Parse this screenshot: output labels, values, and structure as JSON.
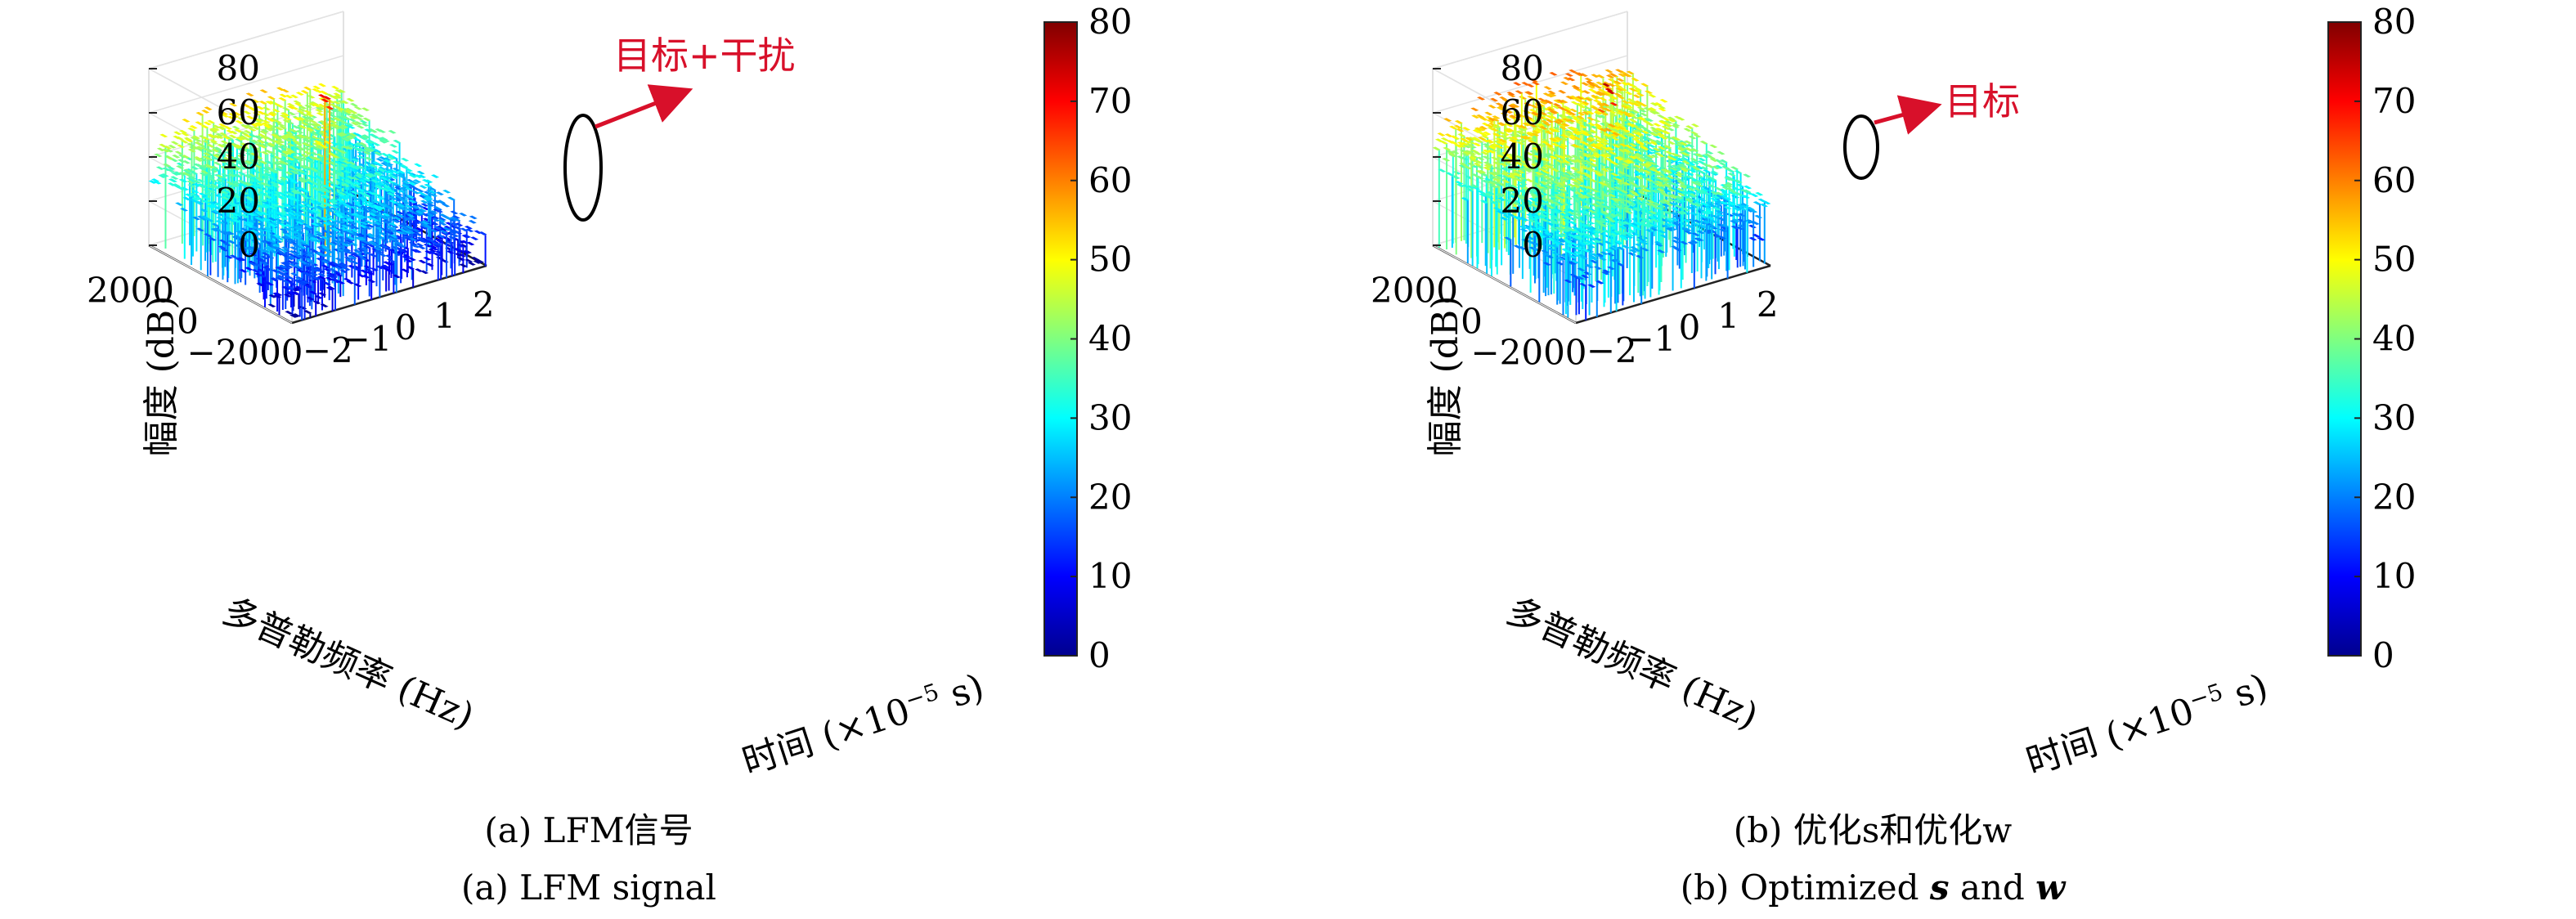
{
  "chart_data": [
    {
      "type": "surface3d",
      "panel": "a",
      "caption_cn": "(a) LFM信号",
      "caption_en": "(a) LFM signal",
      "zlabel": "幅度 (dB)",
      "ylabel": "多普勒频率 (Hz)",
      "xlabel_prefix": "时间 (×10",
      "xlabel_exp": "−5",
      "xlabel_suffix": " s)",
      "z_ticks": [
        "0",
        "20",
        "40",
        "60",
        "80"
      ],
      "y_ticks": [
        "2000",
        "0",
        "−2000"
      ],
      "x_ticks": [
        "−2",
        "−1",
        "0",
        "1",
        "2"
      ],
      "zlim": [
        0,
        80
      ],
      "ylim": [
        -2500,
        2500
      ],
      "xlim": [
        -2.5,
        2.5
      ],
      "colorbar_ticks": [
        "0",
        "10",
        "20",
        "30",
        "40",
        "50",
        "60",
        "70",
        "80"
      ],
      "colorbar_range": [
        0,
        80
      ],
      "surface_profile": {
        "front_level_db": 15,
        "back_level_db": 47,
        "noise_db": 10,
        "peak_db": 78,
        "peak_time": 0.2,
        "peak_doppler": 0
      },
      "annotation": {
        "text": "目标+干扰",
        "color": "#d8102a"
      }
    },
    {
      "type": "surface3d",
      "panel": "b",
      "caption_cn": "(b) 优化s和优化w",
      "caption_en_1": "(b) Optimized ",
      "caption_en_s": "s",
      "caption_en_2": " and ",
      "caption_en_w": "w",
      "zlabel": "幅度 (dB)",
      "ylabel": "多普勒频率 (Hz)",
      "xlabel_prefix": "时间 (×10",
      "xlabel_exp": "−5",
      "xlabel_suffix": " s)",
      "z_ticks": [
        "0",
        "20",
        "40",
        "60",
        "80"
      ],
      "y_ticks": [
        "2000",
        "0",
        "−2000"
      ],
      "x_ticks": [
        "−2",
        "−1",
        "0",
        "1",
        "2"
      ],
      "zlim": [
        0,
        80
      ],
      "ylim": [
        -2500,
        2500
      ],
      "xlim": [
        -2.5,
        2.5
      ],
      "colorbar_ticks": [
        "0",
        "10",
        "20",
        "30",
        "40",
        "50",
        "60",
        "70",
        "80"
      ],
      "colorbar_range": [
        0,
        80
      ],
      "surface_profile": {
        "front_level_db": 30,
        "back_level_db": 52,
        "noise_db": 12,
        "peak_db": 80,
        "peak_time": 0.2,
        "peak_doppler": 0
      },
      "annotation": {
        "text": "目标",
        "color": "#d8102a"
      }
    }
  ]
}
